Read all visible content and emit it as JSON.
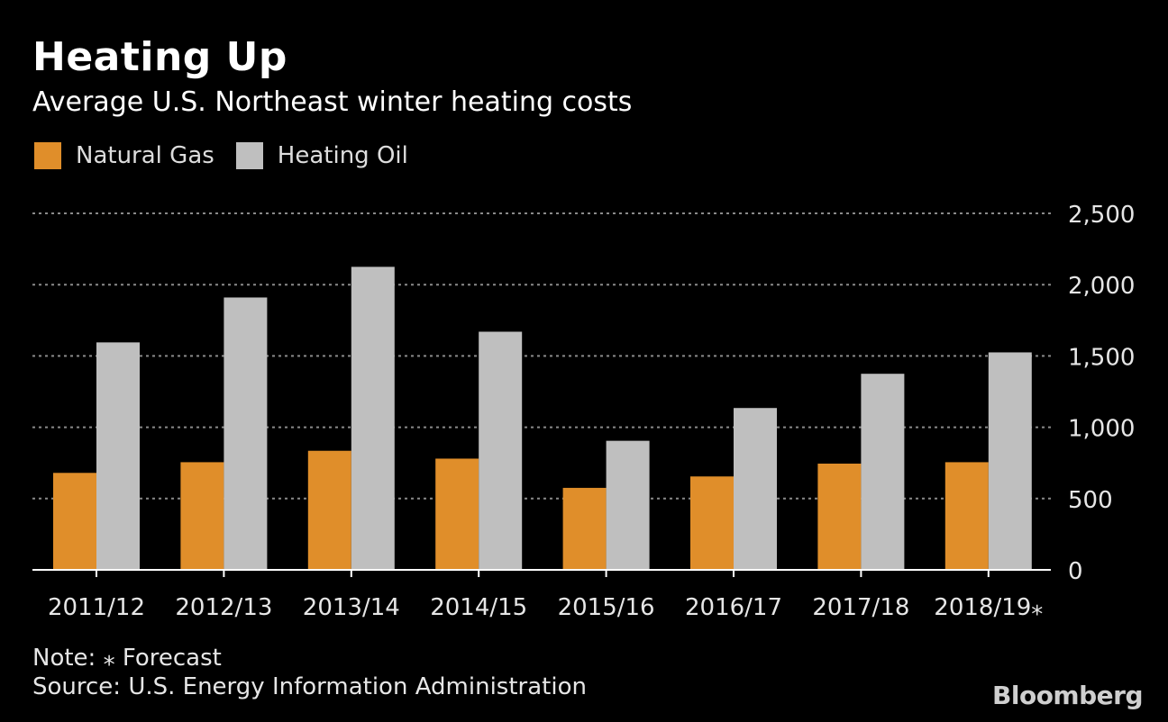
{
  "title": "Heating Up",
  "subtitle": "Average U.S. Northeast winter heating costs",
  "note": "Note: ⁎ Forecast",
  "source": "Source: U.S. Energy Information Administration",
  "brand": "Bloomberg",
  "colors": {
    "natural_gas": "#e08e2a",
    "heating_oil": "#bfbfbf",
    "grid": "#8a8a8a",
    "axis": "#ffffff"
  },
  "chart_data": {
    "type": "bar",
    "title": "Heating Up",
    "subtitle": "Average U.S. Northeast winter heating costs",
    "categories": [
      "2011/12",
      "2012/13",
      "2013/14",
      "2014/15",
      "2015/16",
      "2016/17",
      "2017/18",
      "2018/19⁎"
    ],
    "series": [
      {
        "name": "Natural Gas",
        "values": [
          680,
          755,
          835,
          780,
          575,
          655,
          745,
          755
        ]
      },
      {
        "name": "Heating Oil",
        "values": [
          1595,
          1910,
          2125,
          1670,
          905,
          1135,
          1375,
          1525
        ]
      }
    ],
    "ylim": [
      0,
      2500
    ],
    "yticks": [
      0,
      500,
      1000,
      1500,
      2000,
      2500
    ],
    "ytick_labels": [
      "0",
      "500",
      "1,000",
      "1,500",
      "2,000",
      "2,500"
    ],
    "grid": true,
    "legend": "top-left",
    "yaxis_side": "right"
  }
}
